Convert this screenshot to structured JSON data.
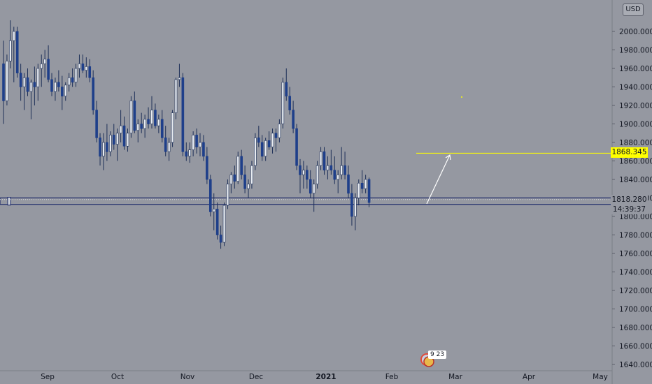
{
  "chart_data": {
    "type": "candlestick",
    "currency": "USD",
    "ylim": [
      1640,
      2015
    ],
    "y_ticks": [
      "1640.000",
      "1660.000",
      "1680.000",
      "1700.000",
      "1720.000",
      "1740.000",
      "1760.000",
      "1780.000",
      "1800.000",
      "1820.000",
      "1840.000",
      "1860.000",
      "1880.000",
      "1900.000",
      "1920.000",
      "1940.000",
      "1960.000",
      "1980.000",
      "2000.000"
    ],
    "x_tick_labels": [
      "Sep",
      "Oct",
      "Nov",
      "Dec",
      "2021",
      "Feb",
      "Mar",
      "Apr",
      "May"
    ],
    "grid": false,
    "colors": {
      "background": "#9598a1",
      "up_body": "#e8ecf1",
      "down_body": "#1e3f8a",
      "wick": "#1e3058",
      "target_line": "#ffff00",
      "support_line": "#1e2b6a",
      "arrow": "#ffffff"
    },
    "candles": [
      [
        1965,
        1990,
        1900,
        1925
      ],
      [
        1925,
        1975,
        1920,
        1968
      ],
      [
        1968,
        2012,
        1960,
        1990
      ],
      [
        1990,
        2005,
        1945,
        2000
      ],
      [
        2000,
        2005,
        1950,
        1955
      ],
      [
        1955,
        1965,
        1925,
        1940
      ],
      [
        1940,
        1955,
        1915,
        1950
      ],
      [
        1950,
        1960,
        1930,
        1935
      ],
      [
        1935,
        1948,
        1905,
        1945
      ],
      [
        1945,
        1962,
        1920,
        1940
      ],
      [
        1940,
        1965,
        1925,
        1960
      ],
      [
        1960,
        1975,
        1940,
        1965
      ],
      [
        1965,
        1980,
        1950,
        1970
      ],
      [
        1970,
        1985,
        1945,
        1948
      ],
      [
        1948,
        1955,
        1930,
        1935
      ],
      [
        1935,
        1950,
        1925,
        1945
      ],
      [
        1945,
        1958,
        1935,
        1940
      ],
      [
        1940,
        1952,
        1915,
        1930
      ],
      [
        1930,
        1945,
        1925,
        1942
      ],
      [
        1942,
        1955,
        1935,
        1950
      ],
      [
        1950,
        1960,
        1940,
        1945
      ],
      [
        1945,
        1965,
        1940,
        1960
      ],
      [
        1960,
        1975,
        1950,
        1965
      ],
      [
        1965,
        1975,
        1955,
        1958
      ],
      [
        1958,
        1972,
        1950,
        1962
      ],
      [
        1962,
        1970,
        1945,
        1950
      ],
      [
        1950,
        1958,
        1910,
        1915
      ],
      [
        1915,
        1925,
        1880,
        1885
      ],
      [
        1885,
        1890,
        1855,
        1865
      ],
      [
        1865,
        1890,
        1850,
        1880
      ],
      [
        1880,
        1900,
        1860,
        1870
      ],
      [
        1870,
        1892,
        1865,
        1888
      ],
      [
        1888,
        1900,
        1872,
        1878
      ],
      [
        1878,
        1895,
        1860,
        1890
      ],
      [
        1890,
        1915,
        1880,
        1898
      ],
      [
        1898,
        1908,
        1872,
        1876
      ],
      [
        1876,
        1895,
        1870,
        1890
      ],
      [
        1890,
        1930,
        1885,
        1925
      ],
      [
        1925,
        1935,
        1890,
        1893
      ],
      [
        1893,
        1905,
        1880,
        1900
      ],
      [
        1900,
        1912,
        1890,
        1895
      ],
      [
        1895,
        1910,
        1885,
        1905
      ],
      [
        1905,
        1918,
        1895,
        1900
      ],
      [
        1900,
        1930,
        1895,
        1915
      ],
      [
        1915,
        1922,
        1895,
        1898
      ],
      [
        1898,
        1910,
        1890,
        1905
      ],
      [
        1905,
        1915,
        1880,
        1885
      ],
      [
        1885,
        1898,
        1865,
        1870
      ],
      [
        1870,
        1885,
        1860,
        1880
      ],
      [
        1880,
        1915,
        1875,
        1912
      ],
      [
        1912,
        1950,
        1905,
        1948
      ],
      [
        1948,
        1965,
        1940,
        1950
      ],
      [
        1950,
        1955,
        1865,
        1870
      ],
      [
        1870,
        1880,
        1860,
        1865
      ],
      [
        1865,
        1880,
        1858,
        1872
      ],
      [
        1872,
        1892,
        1865,
        1888
      ],
      [
        1888,
        1895,
        1868,
        1875
      ],
      [
        1875,
        1890,
        1865,
        1880
      ],
      [
        1880,
        1888,
        1860,
        1865
      ],
      [
        1865,
        1875,
        1835,
        1840
      ],
      [
        1840,
        1845,
        1800,
        1805
      ],
      [
        1805,
        1825,
        1785,
        1808
      ],
      [
        1808,
        1815,
        1775,
        1780
      ],
      [
        1780,
        1790,
        1765,
        1772
      ],
      [
        1772,
        1815,
        1768,
        1812
      ],
      [
        1812,
        1840,
        1808,
        1835
      ],
      [
        1835,
        1848,
        1825,
        1845
      ],
      [
        1845,
        1855,
        1830,
        1838
      ],
      [
        1838,
        1870,
        1835,
        1865
      ],
      [
        1865,
        1872,
        1840,
        1845
      ],
      [
        1845,
        1855,
        1825,
        1830
      ],
      [
        1830,
        1840,
        1820,
        1835
      ],
      [
        1835,
        1860,
        1830,
        1855
      ],
      [
        1855,
        1890,
        1850,
        1885
      ],
      [
        1885,
        1898,
        1875,
        1880
      ],
      [
        1880,
        1888,
        1860,
        1865
      ],
      [
        1865,
        1885,
        1860,
        1882
      ],
      [
        1882,
        1892,
        1872,
        1875
      ],
      [
        1875,
        1895,
        1868,
        1890
      ],
      [
        1890,
        1895,
        1870,
        1885
      ],
      [
        1885,
        1905,
        1880,
        1900
      ],
      [
        1900,
        1950,
        1895,
        1945
      ],
      [
        1945,
        1960,
        1925,
        1930
      ],
      [
        1930,
        1940,
        1910,
        1915
      ],
      [
        1915,
        1925,
        1890,
        1895
      ],
      [
        1895,
        1900,
        1850,
        1855
      ],
      [
        1855,
        1862,
        1825,
        1845
      ],
      [
        1845,
        1860,
        1830,
        1850
      ],
      [
        1850,
        1855,
        1830,
        1840
      ],
      [
        1840,
        1850,
        1820,
        1825
      ],
      [
        1825,
        1840,
        1805,
        1835
      ],
      [
        1835,
        1860,
        1830,
        1855
      ],
      [
        1855,
        1875,
        1850,
        1870
      ],
      [
        1870,
        1875,
        1845,
        1850
      ],
      [
        1850,
        1865,
        1840,
        1855
      ],
      [
        1855,
        1872,
        1845,
        1850
      ],
      [
        1850,
        1865,
        1835,
        1840
      ],
      [
        1840,
        1850,
        1825,
        1845
      ],
      [
        1845,
        1875,
        1840,
        1855
      ],
      [
        1855,
        1870,
        1840,
        1845
      ],
      [
        1845,
        1855,
        1820,
        1825
      ],
      [
        1825,
        1835,
        1790,
        1800
      ],
      [
        1800,
        1825,
        1785,
        1820
      ],
      [
        1820,
        1840,
        1812,
        1836
      ],
      [
        1836,
        1850,
        1825,
        1830
      ],
      [
        1830,
        1845,
        1825,
        1840
      ],
      [
        1840,
        1842,
        1810,
        1815
      ]
    ],
    "price_labels": {
      "target": "1868.345",
      "last": "1818.280",
      "countdown": "14:39:37"
    },
    "levels": {
      "target": 1868.345,
      "last": 1818.28,
      "support_top": 1820,
      "support_bottom": 1813
    },
    "news_time": "9 23"
  }
}
